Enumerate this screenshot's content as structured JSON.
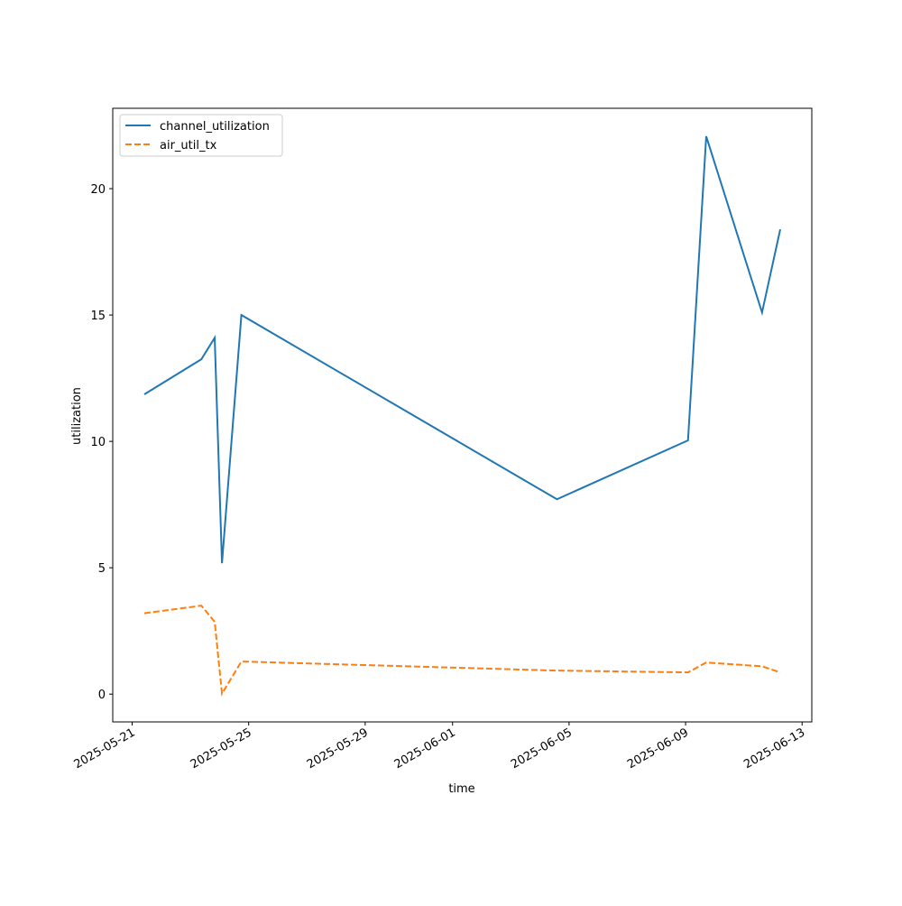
{
  "chart_data": {
    "type": "line",
    "x_label": "time",
    "y_label": "utilization",
    "x": [
      "2025-05-21T10:00",
      "2025-05-23T09:00",
      "2025-05-23T20:00",
      "2025-05-24T02:00",
      "2025-05-24T18:00",
      "2025-06-04T14:00",
      "2025-06-09T02:00",
      "2025-06-09T17:00",
      "2025-06-11T15:00",
      "2025-06-12T06:00"
    ],
    "series": [
      {
        "name": "channel_utilization",
        "color": "#1f77b4",
        "dash": "solid",
        "values": [
          11.86,
          13.25,
          14.1,
          5.18,
          15.0,
          7.71,
          10.04,
          22.07,
          15.1,
          18.39
        ]
      },
      {
        "name": "air_util_tx",
        "color": "#ff7f0e",
        "dash": "dashed",
        "values": [
          3.2,
          3.5,
          2.86,
          0.02,
          1.29,
          0.93,
          0.86,
          1.25,
          1.1,
          0.86
        ]
      }
    ],
    "xlim": [
      "2025-05-20T08:00",
      "2025-06-13T08:00"
    ],
    "xticks": [
      "2025-05-21",
      "2025-05-25",
      "2025-05-29",
      "2025-06-01",
      "2025-06-05",
      "2025-06-09",
      "2025-06-13"
    ],
    "ylim": [
      -1.1,
      23.18
    ],
    "yticks": [
      0,
      5,
      10,
      15,
      20
    ],
    "legend": "upper left",
    "grid": false
  }
}
